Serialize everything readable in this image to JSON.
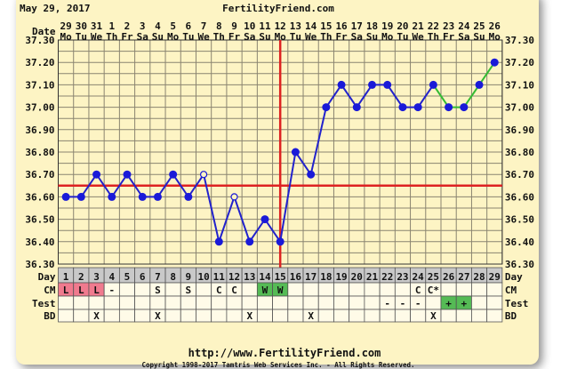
{
  "header": {
    "date": "May 29, 2017",
    "site": "FertilityFriend.com"
  },
  "footer": {
    "url": "http://www.FertilityFriend.com",
    "copyright": "Copyright 1998-2017 Tamtris Web Services Inc. - All Rights Reserved."
  },
  "colors": {
    "background": "#fdf4c4",
    "temp_line": "#2222cc",
    "post_line": "#33bb33",
    "coverline": "#dd2222",
    "ovulation_line": "#dd2222",
    "period": "#f07a8e",
    "fertile": "#55bb55",
    "day_row": "#c9c9c9"
  },
  "row_labels": {
    "date": "Date",
    "day": "Day",
    "cm": "CM",
    "test": "Test",
    "bd": "BD"
  },
  "chart_data": {
    "type": "line",
    "title": "",
    "ylim": [
      36.3,
      37.3
    ],
    "yticks": [
      "37.30",
      "37.20",
      "37.10",
      "37.00",
      "36.90",
      "36.80",
      "36.70",
      "36.60",
      "36.50",
      "36.40",
      "36.30"
    ],
    "grid": true,
    "dates": [
      "29",
      "30",
      "31",
      "1",
      "2",
      "3",
      "4",
      "5",
      "6",
      "7",
      "8",
      "9",
      "10",
      "11",
      "12",
      "13",
      "14",
      "15",
      "16",
      "17",
      "18",
      "19",
      "20",
      "21",
      "22",
      "23",
      "24",
      "25",
      "26"
    ],
    "weekdays": [
      "Mo",
      "Tu",
      "We",
      "Th",
      "Fr",
      "Sa",
      "Su",
      "Mo",
      "Tu",
      "We",
      "Th",
      "Fr",
      "Sa",
      "Su",
      "Mo",
      "Tu",
      "We",
      "Th",
      "Fr",
      "Sa",
      "Su",
      "Mo",
      "Tu",
      "We",
      "Th",
      "Fr",
      "Sa",
      "Su",
      "Mo"
    ],
    "days": [
      1,
      2,
      3,
      4,
      5,
      6,
      7,
      8,
      9,
      10,
      11,
      12,
      13,
      14,
      15,
      16,
      17,
      18,
      19,
      20,
      21,
      22,
      23,
      24,
      25,
      26,
      27,
      28,
      29
    ],
    "temperatures": [
      36.6,
      36.6,
      36.7,
      36.6,
      36.7,
      36.6,
      36.6,
      36.7,
      36.6,
      36.7,
      36.4,
      36.6,
      36.4,
      36.5,
      36.4,
      36.8,
      36.7,
      37.0,
      37.1,
      37.0,
      37.1,
      37.1,
      37.0,
      37.0,
      37.1,
      37.0,
      37.0,
      37.1,
      37.2
    ],
    "open_points_days": [
      10,
      12
    ],
    "green_segment_from_day": 25,
    "coverline": 36.65,
    "ovulation_day": 15,
    "cm": [
      "L",
      "L",
      "L",
      "-",
      "",
      "",
      "S",
      "",
      "S",
      "",
      "C",
      "C",
      "",
      "W",
      "W",
      "",
      "",
      "",
      "",
      "",
      "",
      "",
      "",
      "C",
      "C*",
      "",
      "",
      "",
      ""
    ],
    "cm_colors": [
      "period",
      "period",
      "period",
      "",
      "",
      "",
      "",
      "",
      "",
      "",
      "",
      "",
      "",
      "fertile",
      "fertile",
      "",
      "",
      "",
      "",
      "",
      "",
      "",
      "",
      "",
      "",
      "",
      "",
      "",
      ""
    ],
    "test": [
      "",
      "",
      "",
      "",
      "",
      "",
      "",
      "",
      "",
      "",
      "",
      "",
      "",
      "",
      "",
      "",
      "",
      "",
      "",
      "",
      "",
      "-",
      "-",
      "-",
      "",
      "+",
      "+",
      "",
      ""
    ],
    "test_colors": [
      "",
      "",
      "",
      "",
      "",
      "",
      "",
      "",
      "",
      "",
      "",
      "",
      "",
      "",
      "",
      "",
      "",
      "",
      "",
      "",
      "",
      "",
      "",
      "",
      "",
      "fertile",
      "fertile",
      "",
      ""
    ],
    "bd": [
      "",
      "",
      "X",
      "",
      "",
      "",
      "X",
      "",
      "",
      "",
      "",
      "",
      "X",
      "",
      "",
      "",
      "X",
      "",
      "",
      "",
      "",
      "",
      "",
      "",
      "X",
      "",
      "",
      "",
      ""
    ]
  }
}
